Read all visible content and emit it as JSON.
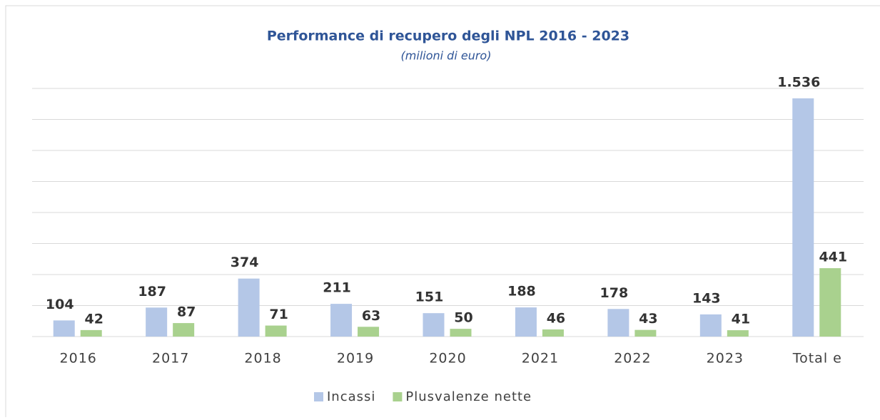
{
  "chart_data": {
    "type": "bar",
    "title": "Performance di recupero degli NPL 2016 -  2023",
    "subtitle": "(milioni di euro)",
    "categories": [
      "2016",
      "2017",
      "2018",
      "2019",
      "2020",
      "2021",
      "2022",
      "2023",
      "Total e"
    ],
    "series": [
      {
        "name": "Incassi",
        "color": "#b4c7e7",
        "values": [
          104,
          187,
          374,
          211,
          151,
          188,
          178,
          143,
          1536
        ],
        "value_labels": [
          "104",
          "187",
          "374",
          "211",
          "151",
          "188",
          "178",
          "143",
          "1.536"
        ]
      },
      {
        "name": "Plusvalenze nette",
        "color": "#a9d18e",
        "values": [
          42,
          87,
          71,
          63,
          50,
          46,
          43,
          41,
          441
        ]
      }
    ],
    "ylim": [
      0,
      1600
    ],
    "yticks": [
      0,
      200,
      400,
      600,
      800,
      1000,
      1200,
      1400,
      1600
    ],
    "grid": true,
    "legend": "bottom"
  }
}
